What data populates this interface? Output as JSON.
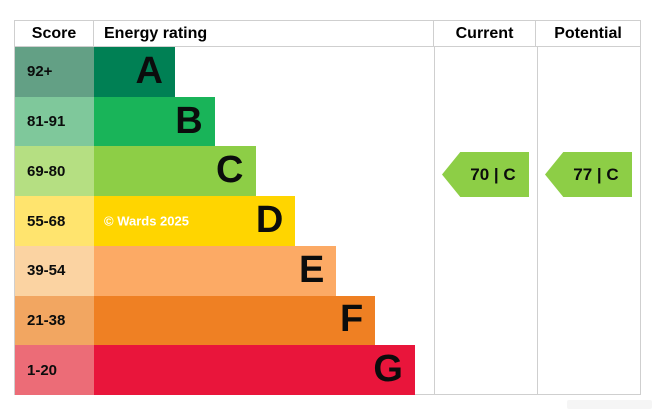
{
  "header": {
    "score": "Score",
    "energy_rating": "Energy rating",
    "current": "Current",
    "potential": "Potential"
  },
  "watermark": "© Wards 2025",
  "chart_data": {
    "type": "bar",
    "title": "EPC energy efficiency rating chart",
    "categories": [
      "A",
      "B",
      "C",
      "D",
      "E",
      "F",
      "G"
    ],
    "bands": [
      {
        "grade": "A",
        "score_range": "92+",
        "band_color": "#008054",
        "score_bg": "#63a085",
        "width_pct": 23.8
      },
      {
        "grade": "B",
        "score_range": "81-91",
        "band_color": "#19b459",
        "score_bg": "#7fc89b",
        "width_pct": 35.5
      },
      {
        "grade": "C",
        "score_range": "69-80",
        "band_color": "#8dce46",
        "score_bg": "#b5df82",
        "width_pct": 47.5
      },
      {
        "grade": "D",
        "score_range": "55-68",
        "band_color": "#ffd500",
        "score_bg": "#ffe46e",
        "width_pct": 59.2
      },
      {
        "grade": "E",
        "score_range": "39-54",
        "band_color": "#fcaa65",
        "score_bg": "#fbd3a2",
        "width_pct": 71.3
      },
      {
        "grade": "F",
        "score_range": "21-38",
        "band_color": "#ef8023",
        "score_bg": "#f2a661",
        "width_pct": 82.7
      },
      {
        "grade": "G",
        "score_range": "1-20",
        "band_color": "#e9153b",
        "score_bg": "#ec6c77",
        "width_pct": 94.4
      }
    ],
    "current": {
      "score": 70,
      "grade": "C",
      "label": "70 | C",
      "arrow_color": "#8dce46",
      "band_index": 2
    },
    "potential": {
      "score": 77,
      "grade": "C",
      "label": "77 | C",
      "arrow_color": "#8dce46",
      "band_index": 2
    }
  },
  "colors": {
    "border": "#cfcfcf",
    "text": "#0b0c0c",
    "watermark_text": "#ffffff"
  }
}
